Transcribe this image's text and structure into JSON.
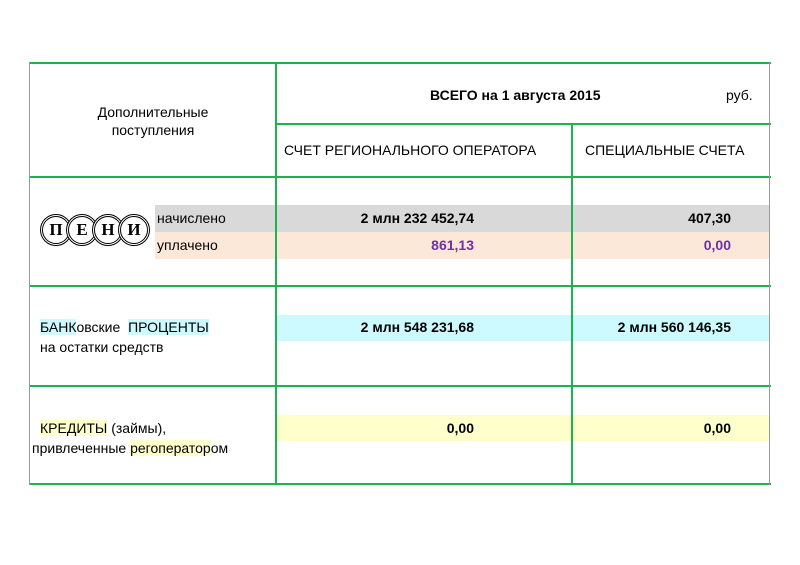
{
  "header": {
    "left_title": "Дополнительные поступления",
    "total_title": "ВСЕГО  на 1 августа 2015",
    "currency": "руб.",
    "col1": "СЧЕТ РЕГИОНАЛЬНОГО ОПЕРАТОРА",
    "col2": "СПЕЦИАЛЬНЫЕ СЧЕТА"
  },
  "penalties": {
    "logo_letters": [
      "П",
      "Е",
      "Н",
      "И"
    ],
    "accrued_label": "начислено",
    "paid_label": "уплачено",
    "accrued_col1": "2 млн 232 452,74",
    "accrued_col2": "407,30",
    "paid_col1": "861,13",
    "paid_col2": "0,00"
  },
  "bank_interest": {
    "label_part1": "БАНК",
    "label_part2": "овские",
    "label_part3": "ПРОЦЕНТЫ",
    "label_line2": "на остатки средств",
    "col1": "2 млн 548 231,68",
    "col2": "2 млн 560 146,35"
  },
  "credits": {
    "label_part1": "КРЕДИТЫ",
    "label_part2": " (займы),",
    "label_line2a": "привлеченные ",
    "label_line2b": "регоператор",
    "label_line2c": "ом",
    "col1": "0,00",
    "col2": "0,00"
  },
  "colors": {
    "grid": "#1db34f",
    "gray_band": "#d9d9d9",
    "peach_band": "#fce8d9",
    "cyan_band": "#ccfaff",
    "yellow_band": "#ffffcc",
    "purple_value": "#7030a0"
  }
}
